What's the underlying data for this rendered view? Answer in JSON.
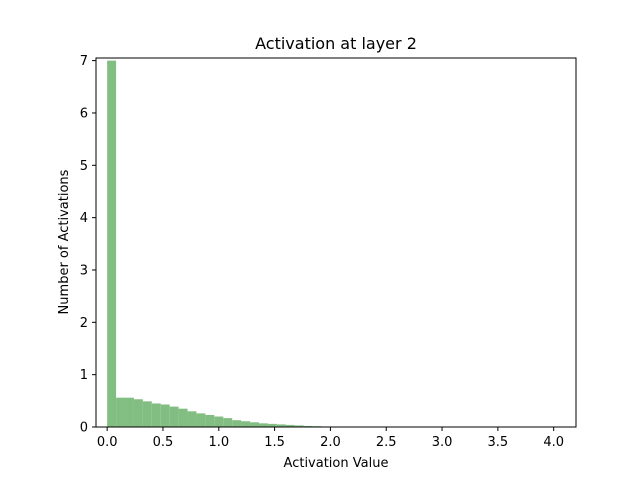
{
  "chart_data": {
    "type": "bar",
    "title": "Activation at layer 2",
    "xlabel": "Activation Value",
    "ylabel": "Number of Activations",
    "xlim": [
      -0.1,
      4.2
    ],
    "ylim": [
      0,
      7.05
    ],
    "xticks": [
      "0.0",
      "0.5",
      "1.0",
      "1.5",
      "2.0",
      "2.5",
      "3.0",
      "3.5",
      "4.0"
    ],
    "yticks": [
      "0",
      "1",
      "2",
      "3",
      "4",
      "5",
      "6",
      "7"
    ],
    "bin_width": 0.08,
    "bins": [
      {
        "x": 0.0,
        "y": 7.0
      },
      {
        "x": 0.08,
        "y": 0.56
      },
      {
        "x": 0.16,
        "y": 0.56
      },
      {
        "x": 0.24,
        "y": 0.53
      },
      {
        "x": 0.32,
        "y": 0.49
      },
      {
        "x": 0.4,
        "y": 0.45
      },
      {
        "x": 0.48,
        "y": 0.43
      },
      {
        "x": 0.56,
        "y": 0.39
      },
      {
        "x": 0.64,
        "y": 0.35
      },
      {
        "x": 0.72,
        "y": 0.3
      },
      {
        "x": 0.8,
        "y": 0.26
      },
      {
        "x": 0.88,
        "y": 0.23
      },
      {
        "x": 0.96,
        "y": 0.2
      },
      {
        "x": 1.04,
        "y": 0.17
      },
      {
        "x": 1.12,
        "y": 0.13
      },
      {
        "x": 1.2,
        "y": 0.11
      },
      {
        "x": 1.28,
        "y": 0.09
      },
      {
        "x": 1.36,
        "y": 0.07
      },
      {
        "x": 1.44,
        "y": 0.06
      },
      {
        "x": 1.52,
        "y": 0.05
      },
      {
        "x": 1.6,
        "y": 0.04
      },
      {
        "x": 1.68,
        "y": 0.03
      },
      {
        "x": 1.76,
        "y": 0.02
      },
      {
        "x": 1.84,
        "y": 0.015
      },
      {
        "x": 1.92,
        "y": 0.01
      },
      {
        "x": 2.0,
        "y": 0.006
      },
      {
        "x": 2.08,
        "y": 0.004
      },
      {
        "x": 2.16,
        "y": 0.003
      },
      {
        "x": 2.24,
        "y": 0.002
      },
      {
        "x": 2.32,
        "y": 0.001
      }
    ],
    "bar_color": "#82be82",
    "grid": false,
    "legend": false
  }
}
